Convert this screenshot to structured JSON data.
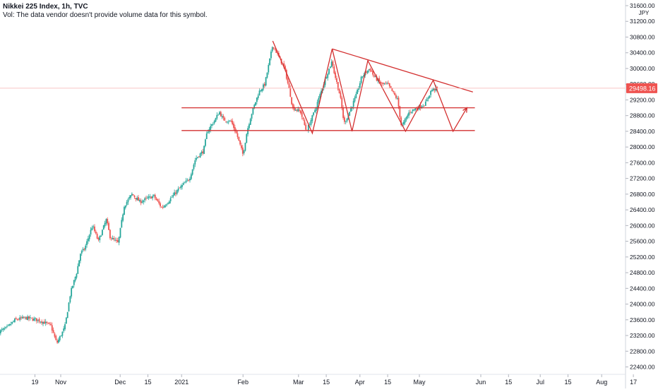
{
  "header": {
    "symbol": "Nikkei 225 Index, 1h, TVC",
    "volume_note": "Vol: The data vendor doesn't provide volume data for this symbol."
  },
  "colors": {
    "up": "#26a69a",
    "down": "#ef5350",
    "drawing": "#d32f2f",
    "price_tag": "#ef5350",
    "axis_text": "#131722",
    "current_price_line": "#f7b0b0"
  },
  "chart_data": {
    "type": "candlestick",
    "currency": "JPY",
    "current_price": 29498.16,
    "current_price_label": "29498.16",
    "y_range": [
      22200,
      31600
    ],
    "y_ticks": [
      22400,
      22800,
      23200,
      23600,
      24000,
      24400,
      24800,
      25200,
      25600,
      26000,
      26400,
      26800,
      27200,
      27600,
      28000,
      28400,
      28800,
      29200,
      29600,
      30000,
      30400,
      30800,
      31200,
      31600
    ],
    "y_tick_labels": [
      "22400.00",
      "22800.00",
      "23200.00",
      "23600.00",
      "24000.00",
      "24400.00",
      "24800.00",
      "25200.00",
      "25600.00",
      "26000.00",
      "26400.00",
      "26800.00",
      "27200.00",
      "27600.00",
      "28000.00",
      "28400.00",
      "28800.00",
      "29200.00",
      "29600.00",
      "30000.00",
      "30400.00",
      "30800.00",
      "31200.00",
      "31600.00"
    ],
    "x_labels": [
      "19",
      "Nov",
      "Dec",
      "15",
      "2021",
      "Feb",
      "Mar",
      "15",
      "Apr",
      "15",
      "May",
      "Jun",
      "15",
      "Jul",
      "15",
      "Aug",
      "17"
    ],
    "x_label_dates": [
      "2020-10-19",
      "2020-11-01",
      "2020-12-01",
      "2020-12-15",
      "2021-01-01",
      "2021-02-01",
      "2021-03-01",
      "2021-03-15",
      "2021-04-01",
      "2021-04-15",
      "2021-05-01",
      "2021-06-01",
      "2021-06-15",
      "2021-07-01",
      "2021-07-15",
      "2021-08-01",
      "2021-08-17"
    ],
    "x_range": [
      "2020-10-01",
      "2021-08-25"
    ],
    "price_path": [
      [
        "2020-10-01",
        23300
      ],
      [
        "2020-10-05",
        23400
      ],
      [
        "2020-10-09",
        23600
      ],
      [
        "2020-10-14",
        23650
      ],
      [
        "2020-10-20",
        23600
      ],
      [
        "2020-10-23",
        23550
      ],
      [
        "2020-10-27",
        23450
      ],
      [
        "2020-10-30",
        23000
      ],
      [
        "2020-11-03",
        23400
      ],
      [
        "2020-11-06",
        24300
      ],
      [
        "2020-11-09",
        24800
      ],
      [
        "2020-11-11",
        25300
      ],
      [
        "2020-11-13",
        25400
      ],
      [
        "2020-11-17",
        26000
      ],
      [
        "2020-11-20",
        25600
      ],
      [
        "2020-11-24",
        26150
      ],
      [
        "2020-11-26",
        25700
      ],
      [
        "2020-11-30",
        25550
      ],
      [
        "2020-12-03",
        26500
      ],
      [
        "2020-12-07",
        26800
      ],
      [
        "2020-12-11",
        26600
      ],
      [
        "2020-12-15",
        26700
      ],
      [
        "2020-12-18",
        26750
      ],
      [
        "2020-12-22",
        26450
      ],
      [
        "2020-12-25",
        26600
      ],
      [
        "2020-12-30",
        26900
      ],
      [
        "2021-01-05",
        27200
      ],
      [
        "2021-01-08",
        27700
      ],
      [
        "2021-01-12",
        27900
      ],
      [
        "2021-01-14",
        28400
      ],
      [
        "2021-01-18",
        28700
      ],
      [
        "2021-01-20",
        28900
      ],
      [
        "2021-01-22",
        28700
      ],
      [
        "2021-01-26",
        28650
      ],
      [
        "2021-01-29",
        28300
      ],
      [
        "2021-02-01",
        27800
      ],
      [
        "2021-02-03",
        28400
      ],
      [
        "2021-02-05",
        28800
      ],
      [
        "2021-02-09",
        29400
      ],
      [
        "2021-02-12",
        29600
      ],
      [
        "2021-02-16",
        30600
      ],
      [
        "2021-02-19",
        30300
      ],
      [
        "2021-02-22",
        30000
      ],
      [
        "2021-02-25",
        29300
      ],
      [
        "2021-02-26",
        29000
      ],
      [
        "2021-03-02",
        28900
      ],
      [
        "2021-03-05",
        28400
      ],
      [
        "2021-03-09",
        28900
      ],
      [
        "2021-03-11",
        29200
      ],
      [
        "2021-03-15",
        29800
      ],
      [
        "2021-03-18",
        30200
      ],
      [
        "2021-03-19",
        29900
      ],
      [
        "2021-03-22",
        29300
      ],
      [
        "2021-03-24",
        28600
      ],
      [
        "2021-03-26",
        28800
      ],
      [
        "2021-03-30",
        29300
      ],
      [
        "2021-04-02",
        29800
      ],
      [
        "2021-04-06",
        30000
      ],
      [
        "2021-04-08",
        29800
      ],
      [
        "2021-04-12",
        29600
      ],
      [
        "2021-04-15",
        29600
      ],
      [
        "2021-04-20",
        29200
      ],
      [
        "2021-04-22",
        28500
      ],
      [
        "2021-04-26",
        28900
      ],
      [
        "2021-04-30",
        29000
      ],
      [
        "2021-05-04",
        29100
      ],
      [
        "2021-05-07",
        29450
      ],
      [
        "2021-05-10",
        29500
      ]
    ],
    "drawings": [
      {
        "kind": "zigzag",
        "points": [
          [
            "2021-02-16",
            30700
          ],
          [
            "2021-03-08",
            28350
          ],
          [
            "2021-03-18",
            30500
          ],
          [
            "2021-03-28",
            28400
          ],
          [
            "2021-04-05",
            30200
          ],
          [
            "2021-04-24",
            28400
          ],
          [
            "2021-05-08",
            29700
          ],
          [
            "2021-05-18",
            28400
          ],
          [
            "2021-05-25",
            29000
          ]
        ]
      },
      {
        "kind": "line",
        "points": [
          [
            "2021-03-18",
            30500
          ],
          [
            "2021-05-28",
            29400
          ]
        ]
      },
      {
        "kind": "line",
        "points": [
          [
            "2021-01-01",
            29000
          ],
          [
            "2021-05-29",
            29000
          ]
        ]
      },
      {
        "kind": "line",
        "points": [
          [
            "2021-01-01",
            28420
          ],
          [
            "2021-05-29",
            28420
          ]
        ]
      }
    ]
  }
}
